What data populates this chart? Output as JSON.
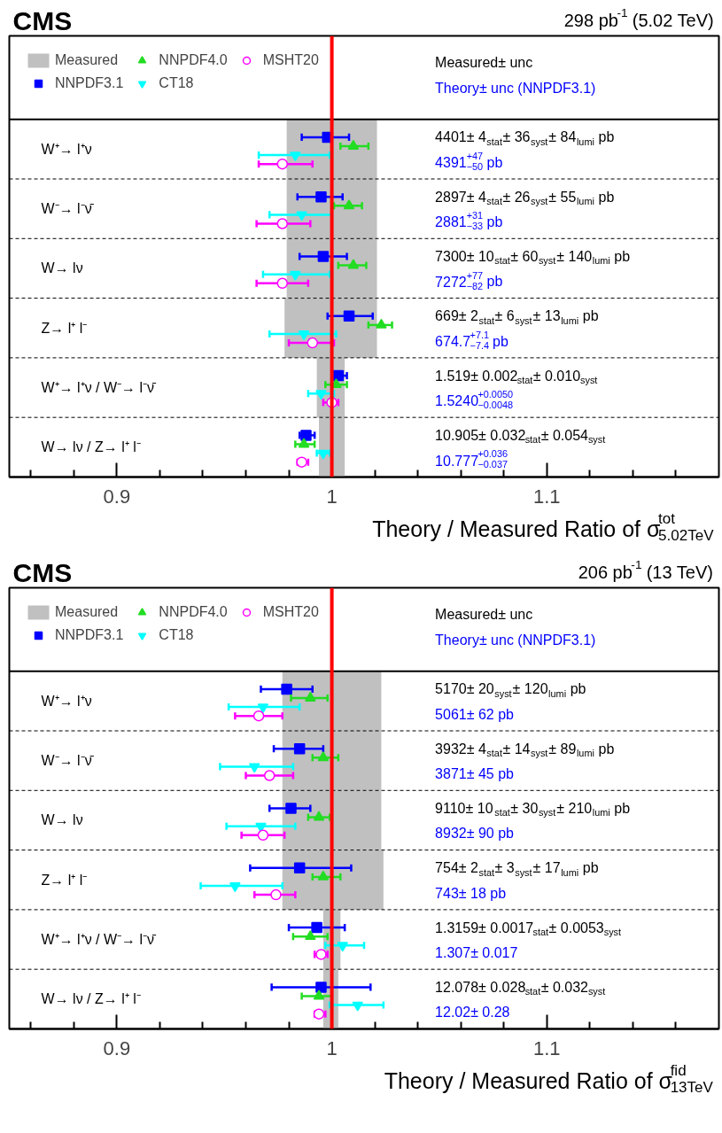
{
  "chart_data": [
    {
      "type": "scatter",
      "orientation": "horizontal",
      "title": "CMS",
      "subtitle": "298 pb$^{-1}$ (5.02 TeV)",
      "xlabel": "Theory / Measured Ratio of σ$^{tot}$$_{5.02TeV}$",
      "categories": [
        "W⁺→ l⁺ν",
        "W⁻→ l⁻ν̄",
        "W→ lν",
        "Z→ l⁺ l⁻",
        "W⁺→ l⁺ν / W⁻→ l⁻ν̄",
        "W→ lν / Z→ l⁺ l⁻"
      ],
      "series": [
        {
          "name": "Measured",
          "type": "bar",
          "color": "#c0c0c0",
          "base": [
            0.979,
            0.979,
            0.979,
            0.978,
            0.993,
            0.994
          ],
          "values": [
            0.042,
            0.042,
            0.042,
            0.043,
            0.013,
            0.012
          ]
        },
        {
          "name": "NNPDF3.1",
          "color": "#0000ff",
          "marker": "square",
          "values": [
            0.998,
            0.995,
            0.996,
            1.008,
            1.003,
            0.988
          ],
          "errors": [
            [
              0.986,
              1.008
            ],
            [
              0.984,
              1.005
            ],
            [
              0.985,
              1.007
            ],
            [
              0.998,
              1.019
            ],
            [
              1.0,
              1.007
            ],
            [
              0.985,
              0.992
            ]
          ]
        },
        {
          "name": "NNPDF4.0",
          "color": "#22dd22",
          "marker": "triangle",
          "values": [
            1.01,
            1.008,
            1.01,
            1.023,
            1.002,
            0.987
          ],
          "errors": [
            [
              1.004,
              1.017
            ],
            [
              1.001,
              1.014
            ],
            [
              1.003,
              1.016
            ],
            [
              1.017,
              1.028
            ],
            [
              0.997,
              1.007
            ],
            [
              0.983,
              0.992
            ]
          ]
        },
        {
          "name": "CT18",
          "color": "#00ffff",
          "marker": "triangle",
          "values": [
            0.983,
            0.986,
            0.983,
            0.987,
            0.995,
            0.996
          ],
          "errors": [
            [
              0.966,
              0.999
            ],
            [
              0.971,
              1.0
            ],
            [
              0.968,
              0.999
            ],
            [
              0.971,
              1.002
            ],
            [
              0.989,
              1.001
            ],
            [
              0.993,
              0.999
            ]
          ]
        },
        {
          "name": "MSHT20",
          "color": "#ff00ff",
          "marker": "circle",
          "values": [
            0.977,
            0.977,
            0.977,
            0.991,
            1.0,
            0.986
          ],
          "errors": [
            [
              0.966,
              0.991
            ],
            [
              0.965,
              0.99
            ],
            [
              0.965,
              0.989
            ],
            [
              0.98,
              1.001
            ],
            [
              0.996,
              1.003
            ],
            [
              0.984,
              0.989
            ]
          ]
        }
      ],
      "ref_lines": [
        {
          "axis": "x",
          "value": 1,
          "color": "#ff0000"
        }
      ],
      "xlim": [
        0.85,
        1.18
      ],
      "xticks": [
        {
          "value": 0.86,
          "label": null
        },
        {
          "value": 0.88,
          "label": null
        },
        {
          "value": 0.9,
          "label": "0.9"
        },
        {
          "value": 0.92,
          "label": null
        },
        {
          "value": 0.94,
          "label": null
        },
        {
          "value": 0.96,
          "label": null
        },
        {
          "value": 0.98,
          "label": null
        },
        1,
        {
          "value": 1.02,
          "label": null
        },
        {
          "value": 1.04,
          "label": null
        },
        {
          "value": 1.06,
          "label": null
        },
        {
          "value": 1.08,
          "label": null
        },
        {
          "value": 1.1,
          "label": "1.1"
        },
        {
          "value": 1.12,
          "label": null
        },
        {
          "value": 1.14,
          "label": null
        },
        {
          "value": 1.16,
          "label": null
        }
      ],
      "grid": "y",
      "legend": "top left",
      "annotations": [
        "Measured± unc",
        "Theory± unc (NNPDF3.1)",
        "4401± 4$_{stat}$± 36$_{syst}$± 84$_{lumi}$ pb",
        "4391$^{+47}$$_{−50}$ pb",
        "2897± 4$_{stat}$± 26$_{syst}$± 55$_{lumi}$ pb",
        "2881$^{+31}$$_{−33}$ pb",
        "7300± 10$_{stat}$± 60$_{syst}$± 140$_{lumi}$ pb",
        "7272$^{+77}$$_{−82}$ pb",
        "669± 2$_{stat}$± 6$_{syst}$± 13$_{lumi}$ pb",
        "674.7$^{+7.1}$$_{−7.4}$ pb",
        "1.519± 0.002$_{stat}$± 0.010$_{syst}$",
        "1.5240$^{+0.0050}$$_{−0.0048}$",
        "10.905± 0.032$_{stat}$± 0.054$_{syst}$",
        "10.777$^{+0.036}$$_{−0.037}$"
      ]
    },
    {
      "type": "scatter",
      "orientation": "horizontal",
      "title": "CMS",
      "subtitle": "206 pb$^{-1}$ (13 TeV)",
      "xlabel": "Theory / Measured Ratio of σ$^{fid}$$_{13TeV}$",
      "categories": [
        "W⁺→ l⁺ν",
        "W⁻→ l⁻ν̄",
        "W→ lν",
        "Z→ l⁺ l⁻",
        "W⁺→ l⁺ν / W⁻→ l⁻ν̄",
        "W→ lν / Z→ l⁺ l⁻"
      ],
      "series": [
        {
          "name": "Measured",
          "type": "bar",
          "color": "#c0c0c0",
          "base": [
            0.977,
            0.977,
            0.977,
            0.977,
            0.996,
            0.996
          ],
          "values": [
            0.046,
            0.046,
            0.046,
            0.047,
            0.008,
            0.007
          ]
        },
        {
          "name": "NNPDF3.1",
          "color": "#0000ff",
          "marker": "square",
          "values": [
            0.979,
            0.985,
            0.981,
            0.985,
            0.993,
            0.995
          ],
          "errors": [
            [
              0.967,
              0.991
            ],
            [
              0.973,
              0.996
            ],
            [
              0.971,
              0.99
            ],
            [
              0.962,
              1.009
            ],
            [
              0.98,
              1.006
            ],
            [
              0.972,
              1.018
            ]
          ]
        },
        {
          "name": "NNPDF4.0",
          "color": "#22dd22",
          "marker": "triangle",
          "values": [
            0.99,
            0.996,
            0.994,
            0.996,
            0.99,
            0.994
          ],
          "errors": [
            [
              0.981,
              0.998
            ],
            [
              0.991,
              1.003
            ],
            [
              0.989,
              0.999
            ],
            [
              0.991,
              1.004
            ],
            [
              0.982,
              0.998
            ],
            [
              0.986,
              1.0
            ]
          ]
        },
        {
          "name": "CT18",
          "color": "#00ffff",
          "marker": "triangle",
          "values": [
            0.968,
            0.964,
            0.967,
            0.955,
            1.005,
            1.012
          ],
          "errors": [
            [
              0.952,
              0.985
            ],
            [
              0.948,
              0.982
            ],
            [
              0.951,
              0.983
            ],
            [
              0.939,
              0.977
            ],
            [
              0.997,
              1.015
            ],
            [
              0.999,
              1.024
            ]
          ]
        },
        {
          "name": "MSHT20",
          "color": "#ff00ff",
          "marker": "circle",
          "values": [
            0.966,
            0.971,
            0.968,
            0.974,
            0.995,
            0.994
          ],
          "errors": [
            [
              0.955,
              0.977
            ],
            [
              0.96,
              0.982
            ],
            [
              0.958,
              0.978
            ],
            [
              0.964,
              0.983
            ],
            [
              0.992,
              0.998
            ],
            [
              0.992,
              0.997
            ]
          ]
        }
      ],
      "ref_lines": [
        {
          "axis": "x",
          "value": 1,
          "color": "#ff0000"
        }
      ],
      "xlim": [
        0.85,
        1.18
      ],
      "xticks": [
        {
          "value": 0.86,
          "label": null
        },
        {
          "value": 0.88,
          "label": null
        },
        {
          "value": 0.9,
          "label": "0.9"
        },
        {
          "value": 0.92,
          "label": null
        },
        {
          "value": 0.94,
          "label": null
        },
        {
          "value": 0.96,
          "label": null
        },
        {
          "value": 0.98,
          "label": null
        },
        1,
        {
          "value": 1.02,
          "label": null
        },
        {
          "value": 1.04,
          "label": null
        },
        {
          "value": 1.06,
          "label": null
        },
        {
          "value": 1.08,
          "label": null
        },
        {
          "value": 1.1,
          "label": "1.1"
        },
        {
          "value": 1.12,
          "label": null
        },
        {
          "value": 1.14,
          "label": null
        },
        {
          "value": 1.16,
          "label": null
        }
      ],
      "grid": "y",
      "legend": "top left",
      "annotations": [
        "Measured± unc",
        "Theory± unc (NNPDF3.1)",
        "5170± 20$_{syst}$± 120$_{lumi}$ pb",
        "5061± 62 pb",
        "3932± 4$_{stat}$± 14$_{syst}$± 89$_{lumi}$ pb",
        "3871± 45 pb",
        "9110± 10$_{stat}$± 30$_{syst}$± 210$_{lumi}$ pb",
        "8932± 90 pb",
        "754± 2$_{stat}$± 3$_{syst}$± 17$_{lumi}$ pb",
        "743± 18 pb",
        "1.3159± 0.0017$_{stat}$± 0.0053$_{syst}$",
        "1.307± 0.017",
        "12.078± 0.028$_{stat}$± 0.032$_{syst}$",
        "12.02± 0.28"
      ]
    }
  ]
}
